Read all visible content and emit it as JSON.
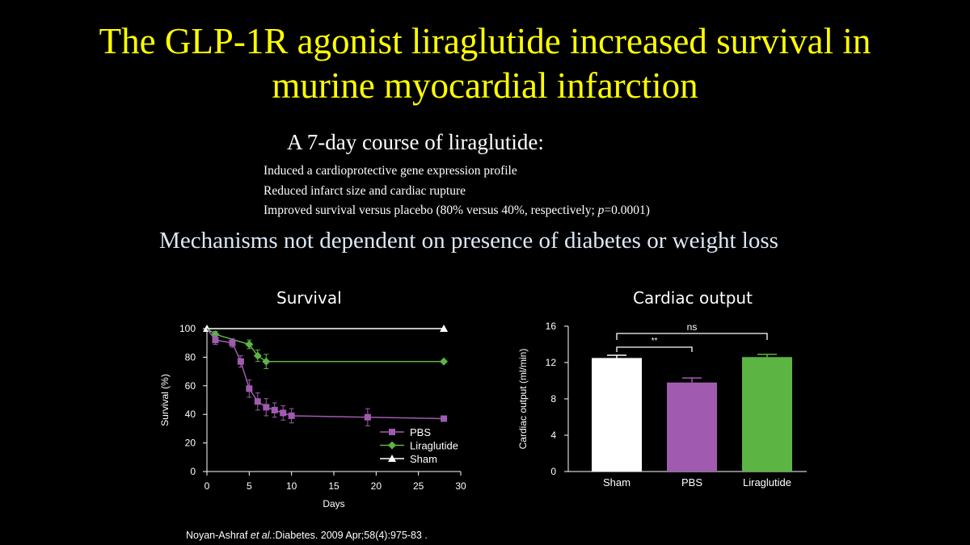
{
  "slide": {
    "title_line1": "The GLP-1R agonist liraglutide increased survival in",
    "title_line2": "murine myocardial infarction",
    "subheading": "A 7-day course of liraglutide:",
    "bullets": [
      "Induced a cardioprotective gene expression profile",
      "Reduced infarct size and cardiac rupture",
      "Improved survival versus placebo (80% versus 40%, respectively; "
    ],
    "bullet3_p": "p",
    "bullet3_suffix": "=0.0001)",
    "mechanism": "Mechanisms not dependent on presence of diabetes or weight loss",
    "citation_author": "Noyan-Ashraf ",
    "citation_etal": "et al.",
    "citation_rest": ":Diabetes.  2009 Apr;58(4):975-83 ."
  },
  "colors": {
    "title": "#ffff00",
    "pbs": "#a05bb0",
    "liraglutide": "#5cb543",
    "sham": "#ffffff"
  },
  "chart_data": [
    {
      "type": "line",
      "title": "Survival",
      "xlabel": "Days",
      "ylabel": "Survival (%)",
      "xlim": [
        0,
        30
      ],
      "ylim": [
        0,
        100
      ],
      "xticks": [
        0,
        5,
        10,
        15,
        20,
        25,
        30
      ],
      "yticks": [
        0,
        20,
        40,
        60,
        80,
        100
      ],
      "legend_position": "bottom-right",
      "series": [
        {
          "name": "PBS",
          "marker": "square",
          "x": [
            0,
            1,
            3,
            4,
            5,
            6,
            7,
            8,
            9,
            10,
            19,
            28
          ],
          "y": [
            100,
            92,
            90,
            77,
            58,
            49,
            45,
            43,
            41,
            39,
            38,
            37
          ],
          "err": [
            0,
            3,
            3,
            4,
            6,
            6,
            6,
            5,
            5,
            5,
            6,
            0
          ]
        },
        {
          "name": "Liraglutide",
          "marker": "diamond",
          "x": [
            0,
            1,
            5,
            6,
            7,
            28
          ],
          "y": [
            100,
            96,
            89,
            81,
            77,
            77
          ],
          "err": [
            0,
            2,
            3,
            4,
            5,
            0
          ]
        },
        {
          "name": "Sham",
          "marker": "triangle",
          "x": [
            0,
            28
          ],
          "y": [
            100,
            100
          ],
          "err": [
            0,
            0
          ]
        }
      ]
    },
    {
      "type": "bar",
      "title": "Cardiac output",
      "ylabel": "Cardiac output (ml/min)",
      "categories": [
        "Sham",
        "PBS",
        "Liraglutide"
      ],
      "values": [
        12.5,
        9.8,
        12.6
      ],
      "errors": [
        0.3,
        0.5,
        0.3
      ],
      "ylim": [
        0,
        16
      ],
      "yticks": [
        0,
        4,
        8,
        12,
        16
      ],
      "annotations": [
        {
          "label": "**",
          "from": "Sham",
          "to": "PBS"
        },
        {
          "label": "ns",
          "from": "Sham",
          "to": "Liraglutide"
        }
      ]
    }
  ]
}
